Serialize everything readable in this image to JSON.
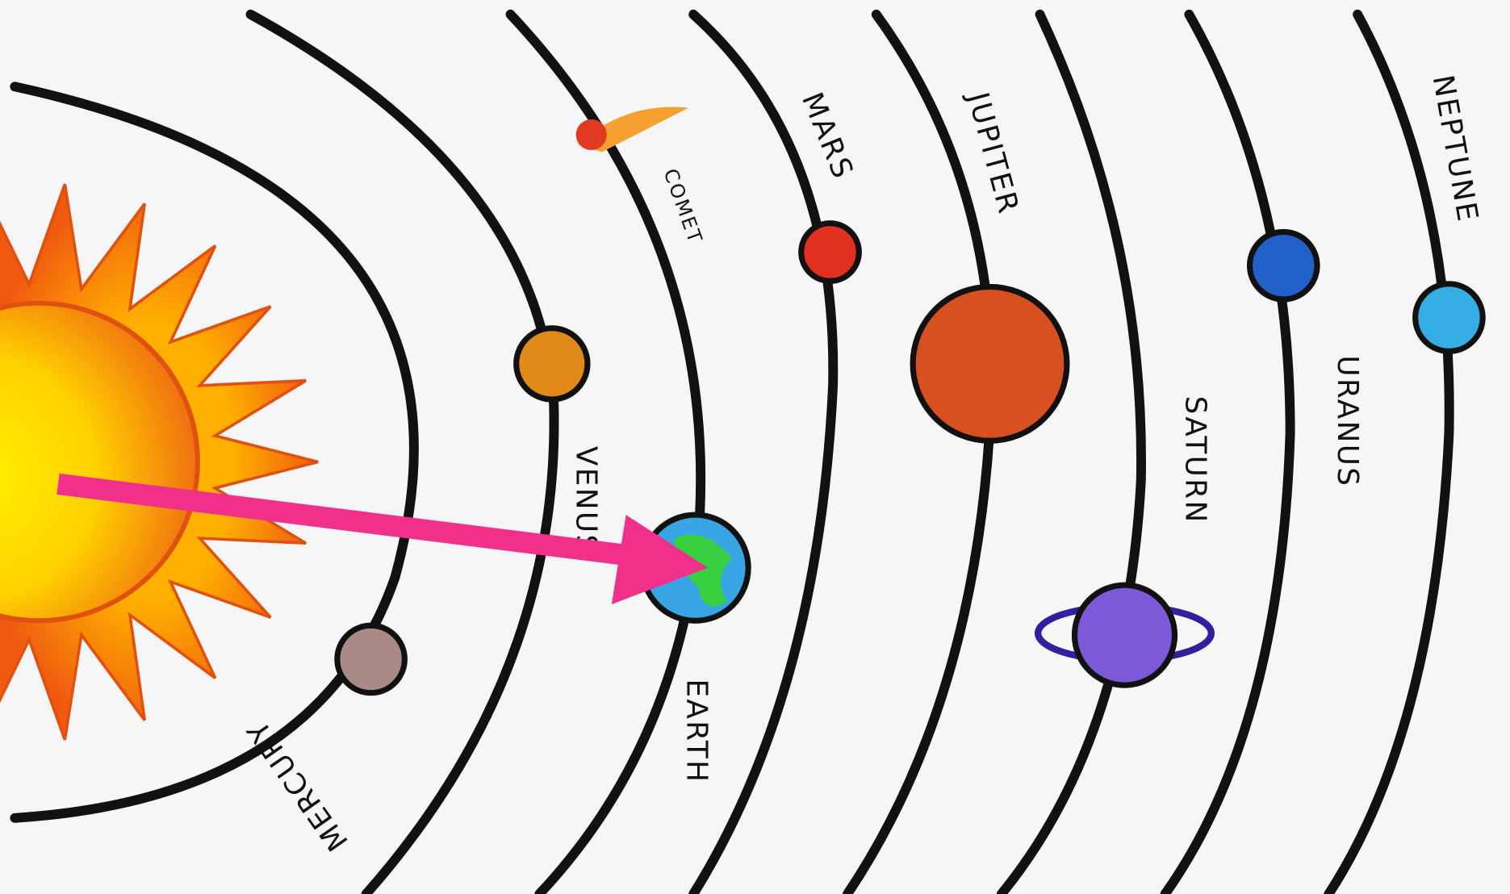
{
  "planets": [
    {
      "label": "MERCURY"
    },
    {
      "label": "VENUS"
    },
    {
      "label": "EARTH"
    },
    {
      "label": "MARS"
    },
    {
      "label": "JUPITER"
    },
    {
      "label": "SATURN"
    },
    {
      "label": "URANUS"
    },
    {
      "label": "NEPTUNE"
    }
  ],
  "comet": {
    "label": "COMET"
  }
}
